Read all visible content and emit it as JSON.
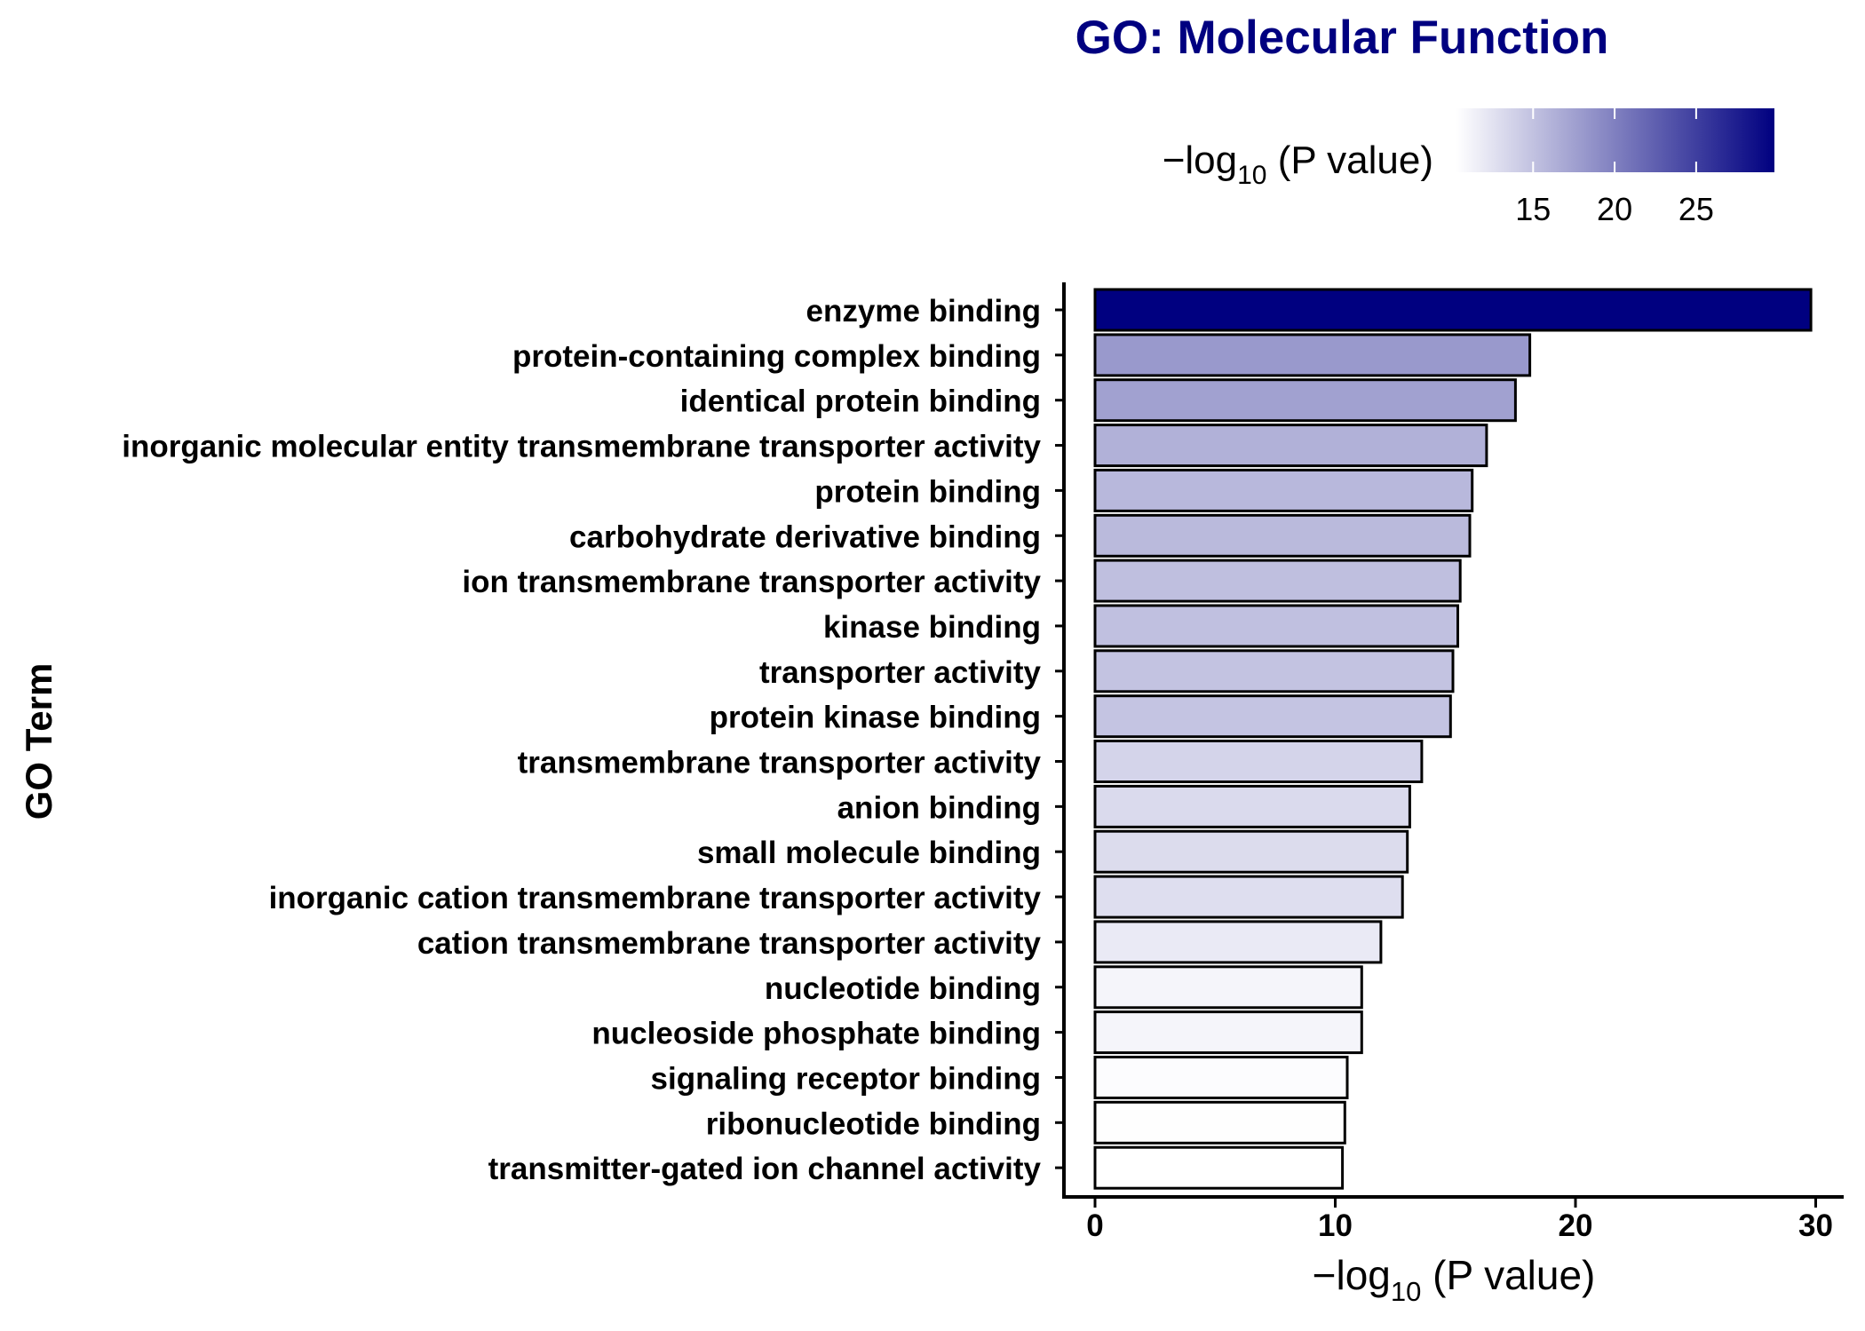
{
  "chart_data": {
    "type": "bar",
    "orientation": "horizontal",
    "title": "GO: Molecular Function",
    "xlabel": "-log10 (P value)",
    "ylabel": "GO Term",
    "xlim": [
      0,
      30
    ],
    "x_ticks": [
      0,
      10,
      20,
      30
    ],
    "grid": false,
    "categories": [
      "enzyme binding",
      "protein-containing complex binding",
      "identical protein binding",
      "inorganic molecular entity transmembrane transporter activity",
      "protein binding",
      "carbohydrate derivative binding",
      "ion transmembrane transporter activity",
      "kinase binding",
      "transporter activity",
      "protein kinase binding",
      "transmembrane transporter activity",
      "anion binding",
      "small molecule binding",
      "inorganic cation transmembrane transporter activity",
      "cation transmembrane transporter activity",
      "nucleotide binding",
      "nucleoside phosphate binding",
      "signaling receptor binding",
      "ribonucleotide binding",
      "transmitter-gated ion channel activity"
    ],
    "values": [
      29.8,
      18.1,
      17.5,
      16.3,
      15.7,
      15.6,
      15.2,
      15.1,
      14.9,
      14.8,
      13.6,
      13.1,
      13.0,
      12.8,
      11.9,
      11.1,
      11.1,
      10.5,
      10.4,
      10.3
    ],
    "colorbar": {
      "label": "-log10 (P value)",
      "ticks": [
        15,
        20,
        25
      ],
      "range": [
        10.3,
        29.8
      ],
      "color_low": "#ffffff",
      "color_high": "#000080",
      "placement": "top"
    },
    "colors": {
      "title": "#000080",
      "bar_outline": "#000000"
    }
  }
}
